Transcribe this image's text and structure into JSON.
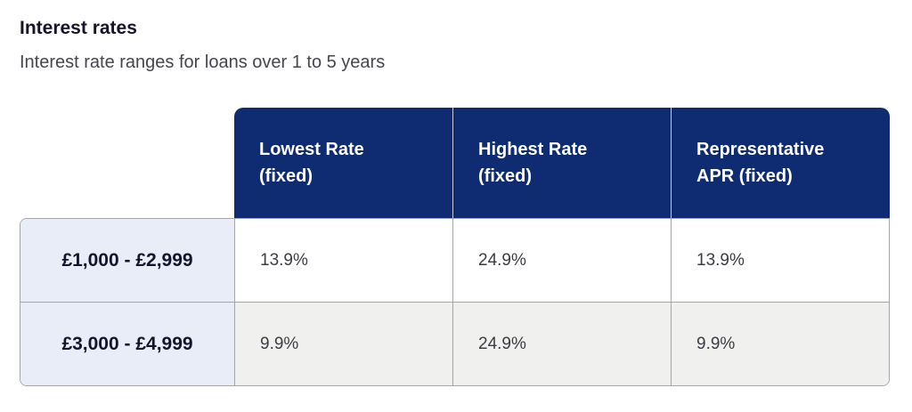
{
  "page": {
    "title": "Interest rates",
    "subtitle": "Interest rate ranges for loans over 1 to 5 years"
  },
  "table": {
    "column_headers": [
      "Lowest Rate\n(fixed)",
      "Highest Rate\n(fixed)",
      "Representative\nAPR (fixed)"
    ],
    "rows": [
      {
        "label": "£1,000 - £2,999",
        "lowest_rate": "13.9%",
        "highest_rate": "24.9%",
        "representative_apr": "13.9%"
      },
      {
        "label": "£3,000 - £4,999",
        "lowest_rate": "9.9%",
        "highest_rate": "24.9%",
        "representative_apr": "9.9%"
      }
    ],
    "colors": {
      "header_background": "#0f2c72",
      "header_text": "#ffffff",
      "row_label_background": "#e8edf7",
      "alt_row_background": "#f0f0ee",
      "border": "#a5a5a5"
    }
  }
}
